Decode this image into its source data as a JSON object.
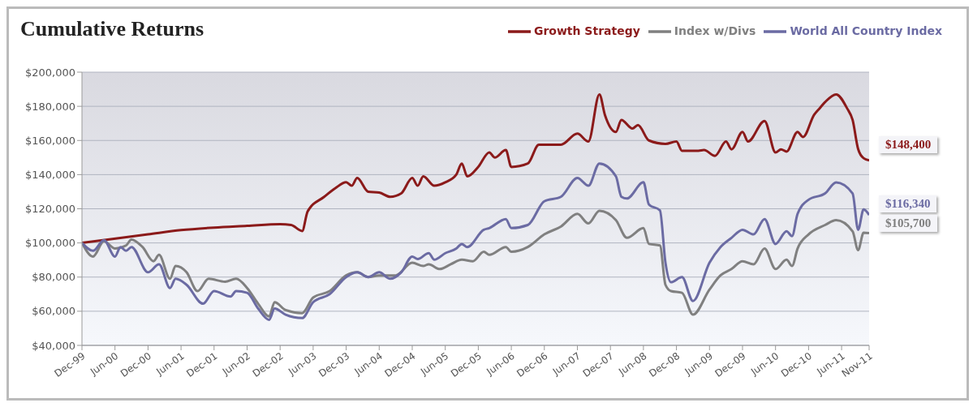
{
  "chart_data": {
    "type": "line",
    "title": "Cumulative Returns",
    "legend": "top right",
    "grid": "y",
    "marker": "none",
    "line_style": "solid",
    "xlim": [
      "1999-12",
      "2011-11"
    ],
    "xticks": [
      {
        "value": "1999-12",
        "label": "Dec-99"
      },
      {
        "value": "2000-06",
        "label": "Jun-00"
      },
      {
        "value": "2000-12",
        "label": "Dec-00"
      },
      {
        "value": "2001-06",
        "label": "Jun-01"
      },
      {
        "value": "2001-12",
        "label": "Dec-01"
      },
      {
        "value": "2002-06",
        "label": "Jun-02"
      },
      {
        "value": "2002-12",
        "label": "Dec-02"
      },
      {
        "value": "2003-06",
        "label": "Jun-03"
      },
      {
        "value": "2003-12",
        "label": "Dec-03"
      },
      {
        "value": "2004-06",
        "label": "Jun-04"
      },
      {
        "value": "2004-12",
        "label": "Dec-04"
      },
      {
        "value": "2005-06",
        "label": "Jun-05"
      },
      {
        "value": "2005-12",
        "label": "Dec-05"
      },
      {
        "value": "2006-06",
        "label": "Jun-06"
      },
      {
        "value": "2006-12",
        "label": "Dec-06"
      },
      {
        "value": "2007-06",
        "label": "Jun-07"
      },
      {
        "value": "2007-12",
        "label": "Dec-07"
      },
      {
        "value": "2008-06",
        "label": "Jun-08"
      },
      {
        "value": "2008-12",
        "label": "Dec-08"
      },
      {
        "value": "2009-06",
        "label": "Jun-09"
      },
      {
        "value": "2009-12",
        "label": "Dec-09"
      },
      {
        "value": "2010-06",
        "label": "Jun-10"
      },
      {
        "value": "2010-12",
        "label": "Dec-10"
      },
      {
        "value": "2011-06",
        "label": "Jun-11"
      },
      {
        "value": "2011-11",
        "label": "Nov-11"
      }
    ],
    "ylim": [
      40000,
      200000
    ],
    "yticks": [
      {
        "value": 40000,
        "label": "$40,000"
      },
      {
        "value": 60000,
        "label": "$60,000"
      },
      {
        "value": 80000,
        "label": "$80,000"
      },
      {
        "value": 100000,
        "label": "$100,000"
      },
      {
        "value": 120000,
        "label": "$120,000"
      },
      {
        "value": 140000,
        "label": "$140,000"
      },
      {
        "value": 160000,
        "label": "$160,000"
      },
      {
        "value": 180000,
        "label": "$180,000"
      },
      {
        "value": 200000,
        "label": "$200,000"
      }
    ],
    "series": [
      {
        "name": "Growth Strategy",
        "color": "#8b1a1a",
        "x": [
          "1999-12",
          "2000-12",
          "2001-06",
          "2001-12",
          "2002-06",
          "2002-12",
          "2003-02",
          "2003-04",
          "2003-05",
          "2003-08",
          "2003-10",
          "2003-12",
          "2004-01",
          "2004-02",
          "2004-04",
          "2004-06",
          "2004-08",
          "2004-10",
          "2004-12",
          "2005-01",
          "2005-02",
          "2005-04",
          "2005-06",
          "2005-08",
          "2005-09",
          "2005-10",
          "2005-12",
          "2006-02",
          "2006-03",
          "2006-05",
          "2006-06",
          "2006-09",
          "2006-11",
          "2007-03",
          "2007-06",
          "2007-08",
          "2007-10",
          "2007-11",
          "2008-01",
          "2008-02",
          "2008-04",
          "2008-05",
          "2008-07",
          "2008-10",
          "2008-12",
          "2009-01",
          "2009-04",
          "2009-05",
          "2009-07",
          "2009-09",
          "2009-10",
          "2009-12",
          "2010-01",
          "2010-04",
          "2010-06",
          "2010-07",
          "2010-08",
          "2010-10",
          "2010-11",
          "2011-01",
          "2011-02",
          "2011-03",
          "2011-05",
          "2011-07",
          "2011-08",
          "2011-09",
          "2011-10",
          "2011-11"
        ],
        "values": [
          100000,
          105000,
          107500,
          109000,
          110000,
          111000,
          110500,
          107000,
          118500,
          127000,
          132000,
          135500,
          133500,
          138000,
          130000,
          129500,
          127000,
          129000,
          138000,
          133500,
          139000,
          133500,
          135500,
          140000,
          146500,
          139000,
          144600,
          153000,
          150000,
          154400,
          144500,
          146500,
          157500,
          157500,
          164000,
          159400,
          187000,
          175000,
          165000,
          172000,
          167000,
          169000,
          160000,
          158000,
          159400,
          154000,
          154000,
          154400,
          151000,
          159400,
          154800,
          165000,
          159400,
          171400,
          153000,
          154800,
          153500,
          165000,
          162000,
          175000,
          178800,
          182500,
          187000,
          178800,
          172000,
          155000,
          149600,
          148400
        ]
      },
      {
        "name": "Index w/Divs",
        "color": "#808080",
        "x": [
          "1999-12",
          "2000-02",
          "2000-04",
          "2000-06",
          "2000-08",
          "2000-09",
          "2000-11",
          "2001-01",
          "2001-02",
          "2001-04",
          "2001-05",
          "2001-07",
          "2001-09",
          "2001-11",
          "2002-02",
          "2002-04",
          "2002-06",
          "2002-08",
          "2002-10",
          "2002-11",
          "2003-01",
          "2003-04",
          "2003-06",
          "2003-09",
          "2003-12",
          "2004-02",
          "2004-04",
          "2004-06",
          "2004-09",
          "2004-12",
          "2005-02",
          "2005-03",
          "2005-05",
          "2005-07",
          "2005-09",
          "2005-11",
          "2006-01",
          "2006-02",
          "2006-05",
          "2006-06",
          "2006-09",
          "2006-12",
          "2007-03",
          "2007-06",
          "2007-08",
          "2007-10",
          "2008-01",
          "2008-03",
          "2008-06",
          "2008-07",
          "2008-09",
          "2008-10",
          "2008-11",
          "2009-01",
          "2009-03",
          "2009-06",
          "2009-08",
          "2009-10",
          "2009-12",
          "2010-02",
          "2010-04",
          "2010-06",
          "2010-08",
          "2010-09",
          "2010-10",
          "2010-12",
          "2011-03",
          "2011-05",
          "2011-08",
          "2011-09",
          "2011-10",
          "2011-11"
        ],
        "values": [
          100000,
          92000,
          101000,
          96700,
          98500,
          102000,
          97600,
          89300,
          93000,
          79000,
          86500,
          82800,
          71800,
          79000,
          77300,
          79000,
          73600,
          64400,
          57000,
          65300,
          60700,
          58900,
          68000,
          71800,
          81000,
          82800,
          80000,
          81000,
          81000,
          88400,
          86500,
          87500,
          84700,
          87500,
          90200,
          89300,
          94800,
          93000,
          97600,
          94800,
          97600,
          105000,
          109600,
          117000,
          111400,
          118800,
          113300,
          103000,
          108700,
          99400,
          98500,
          75500,
          71800,
          70800,
          58000,
          72700,
          81000,
          84700,
          89300,
          87500,
          96700,
          84700,
          90200,
          86500,
          96700,
          105000,
          110500,
          113300,
          106800,
          95800,
          106000,
          105700
        ]
      },
      {
        "name": "World All Country Index",
        "color": "#6b6ba3",
        "x": [
          "1999-12",
          "2000-02",
          "2000-04",
          "2000-06",
          "2000-07",
          "2000-08",
          "2000-09",
          "2000-12",
          "2001-02",
          "2001-04",
          "2001-05",
          "2001-07",
          "2001-10",
          "2001-12",
          "2002-03",
          "2002-04",
          "2002-06",
          "2002-08",
          "2002-10",
          "2002-11",
          "2003-01",
          "2003-04",
          "2003-06",
          "2003-09",
          "2003-12",
          "2004-02",
          "2004-04",
          "2004-06",
          "2004-08",
          "2004-10",
          "2004-12",
          "2005-01",
          "2005-03",
          "2005-04",
          "2005-06",
          "2005-08",
          "2005-09",
          "2005-10",
          "2006-01",
          "2006-02",
          "2006-05",
          "2006-06",
          "2006-09",
          "2006-12",
          "2007-03",
          "2007-06",
          "2007-08",
          "2007-10",
          "2008-01",
          "2008-02",
          "2008-03",
          "2008-06",
          "2008-07",
          "2008-09",
          "2008-10",
          "2008-11",
          "2009-01",
          "2009-03",
          "2009-06",
          "2009-08",
          "2009-10",
          "2009-12",
          "2010-02",
          "2010-04",
          "2010-06",
          "2010-08",
          "2010-09",
          "2010-10",
          "2010-12",
          "2011-03",
          "2011-05",
          "2011-08",
          "2011-09",
          "2011-10",
          "2011-11"
        ],
        "values": [
          100000,
          95400,
          101600,
          92000,
          97600,
          95400,
          97600,
          82800,
          87500,
          73600,
          79000,
          75500,
          64400,
          71800,
          68600,
          71800,
          70800,
          61600,
          55000,
          61600,
          58000,
          56000,
          65300,
          70000,
          80000,
          82800,
          80000,
          82800,
          79000,
          82800,
          92000,
          90600,
          94000,
          90200,
          94000,
          96700,
          99400,
          97600,
          107700,
          108700,
          114000,
          108700,
          110500,
          124400,
          127000,
          138000,
          133500,
          146500,
          139000,
          127000,
          126000,
          135500,
          122500,
          119000,
          88400,
          77000,
          80000,
          66000,
          88400,
          97600,
          103000,
          107700,
          105000,
          114000,
          99400,
          106800,
          104000,
          117000,
          125300,
          129000,
          135400,
          129000,
          107700,
          119700,
          116340
        ]
      }
    ],
    "annotations": [
      {
        "text": "$148,400",
        "x": "2011-11",
        "y": 148400
      },
      {
        "text": "$116,340",
        "x": "2011-11",
        "y": 116340
      },
      {
        "text": "$105,700",
        "x": "2011-11",
        "y": 105700
      }
    ]
  }
}
